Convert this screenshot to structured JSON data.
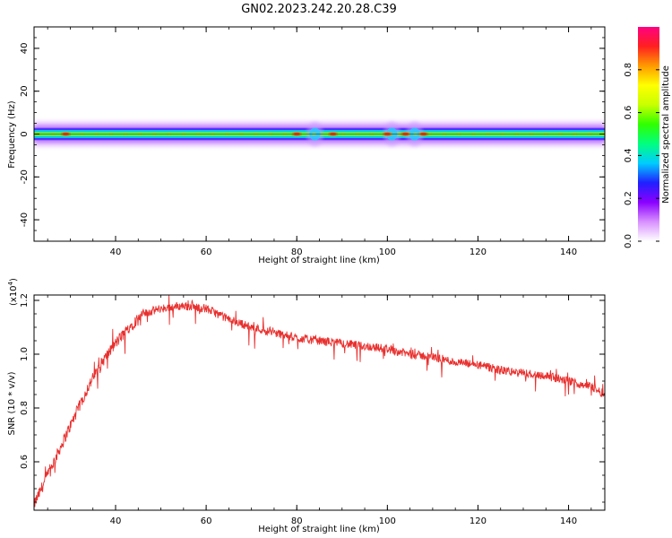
{
  "figure_title": "GN02.2023.242.20.28.C39",
  "chart_data": [
    {
      "type": "heatmap",
      "xlabel": "Height of straight line (km)",
      "ylabel": "Frequency (Hz)",
      "xlim": [
        22,
        148
      ],
      "ylim": [
        -50,
        50
      ],
      "xticks": [
        "40",
        "60",
        "80",
        "100",
        "120",
        "140"
      ],
      "xtick_values": [
        40,
        60,
        80,
        100,
        120,
        140
      ],
      "yticks": [
        "-40",
        "-20",
        "0",
        "20",
        "40"
      ],
      "ytick_values": [
        -40,
        -20,
        0,
        20,
        40
      ],
      "colorbar": {
        "label": "Normalized spectral amplitude",
        "range": [
          0,
          1
        ],
        "ticks": [
          "0.0",
          "0.2",
          "0.4",
          "0.6",
          "0.8"
        ],
        "tick_values": [
          0.0,
          0.2,
          0.4,
          0.6,
          0.8
        ],
        "colors": [
          "#ffffff",
          "#d890ff",
          "#8a00ff",
          "#2020ff",
          "#00ccff",
          "#00ff80",
          "#30ff00",
          "#c8ff00",
          "#ffff00",
          "#ff9a00",
          "#ff2020",
          "#ff0080"
        ]
      },
      "band": {
        "center_hz": 0,
        "halfwidth_hz": 3,
        "hotspots_km": [
          29,
          80,
          88,
          100,
          104,
          108
        ],
        "bulges_km": [
          84,
          101,
          106
        ]
      }
    },
    {
      "type": "line",
      "xlabel": "Height of straight line (km)",
      "ylabel": "SNR (10 * v/v)",
      "y_multiplier": "(x10^4)",
      "y_multiplier_base": "(x10",
      "y_multiplier_exp": "4",
      "y_multiplier_close": ")",
      "xlim": [
        22,
        148
      ],
      "ylim": [
        0.42,
        1.22
      ],
      "xticks": [
        "40",
        "60",
        "80",
        "100",
        "120",
        "140"
      ],
      "xtick_values": [
        40,
        60,
        80,
        100,
        120,
        140
      ],
      "yticks": [
        "0.6",
        "0.8",
        "1.0",
        "1.2"
      ],
      "ytick_values": [
        0.6,
        0.8,
        1.0,
        1.2
      ],
      "line_color": "#e8302e",
      "trend_points": [
        [
          22,
          0.44
        ],
        [
          25,
          0.55
        ],
        [
          28,
          0.66
        ],
        [
          31,
          0.77
        ],
        [
          34,
          0.88
        ],
        [
          37,
          0.97
        ],
        [
          40,
          1.04
        ],
        [
          43,
          1.1
        ],
        [
          46,
          1.15
        ],
        [
          50,
          1.17
        ],
        [
          55,
          1.18
        ],
        [
          60,
          1.17
        ],
        [
          65,
          1.13
        ],
        [
          70,
          1.1
        ],
        [
          75,
          1.08
        ],
        [
          80,
          1.06
        ],
        [
          85,
          1.05
        ],
        [
          90,
          1.04
        ],
        [
          95,
          1.03
        ],
        [
          100,
          1.02
        ],
        [
          105,
          1.0
        ],
        [
          110,
          0.99
        ],
        [
          115,
          0.97
        ],
        [
          120,
          0.96
        ],
        [
          125,
          0.94
        ],
        [
          130,
          0.93
        ],
        [
          135,
          0.92
        ],
        [
          140,
          0.9
        ],
        [
          145,
          0.88
        ],
        [
          148,
          0.85
        ]
      ]
    }
  ]
}
